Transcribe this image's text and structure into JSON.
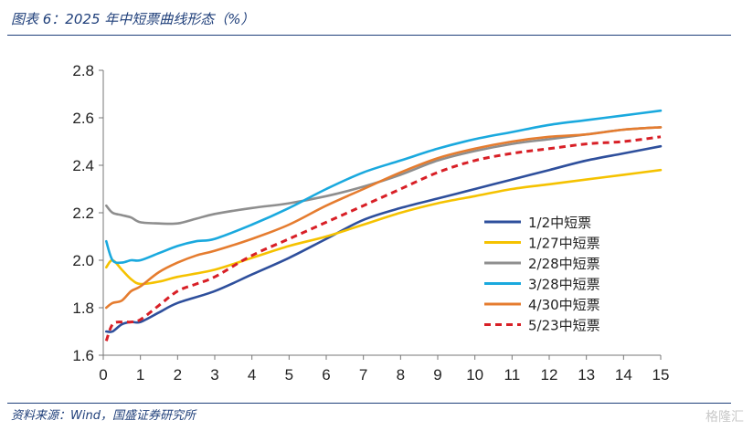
{
  "header": {
    "title": "图表 6：2025 年中短票曲线形态（%）"
  },
  "footer": {
    "source": "资料来源：Wind，国盛证券研究所"
  },
  "watermark": {
    "text": "格隆汇"
  },
  "chart_data": {
    "type": "line",
    "xlim": [
      0,
      15
    ],
    "ylim": [
      1.6,
      2.8
    ],
    "x_ticks": [
      0,
      1,
      2,
      3,
      4,
      5,
      6,
      7,
      8,
      9,
      10,
      11,
      12,
      13,
      14,
      15
    ],
    "y_ticks": [
      1.6,
      1.8,
      2.0,
      2.2,
      2.4,
      2.6,
      2.8
    ],
    "x_tick_labels": [
      "0",
      "1",
      "2",
      "3",
      "4",
      "5",
      "6",
      "7",
      "8",
      "9",
      "10",
      "11",
      "12",
      "13",
      "14",
      "15"
    ],
    "y_tick_labels": [
      "1.6",
      "1.8",
      "2.0",
      "2.2",
      "2.4",
      "2.6",
      "2.8"
    ],
    "legend_position": "right",
    "grid": false,
    "series": [
      {
        "name": "1/2中短票",
        "color": "#2e4f9c",
        "dashed": false,
        "x": [
          0.08,
          0.25,
          0.5,
          0.75,
          1,
          1.5,
          2,
          3,
          4,
          5,
          6,
          7,
          8,
          9,
          10,
          11,
          12,
          13,
          14,
          15
        ],
        "y": [
          1.7,
          1.7,
          1.73,
          1.74,
          1.74,
          1.78,
          1.82,
          1.87,
          1.94,
          2.01,
          2.09,
          2.17,
          2.22,
          2.26,
          2.3,
          2.34,
          2.38,
          2.42,
          2.45,
          2.48
        ]
      },
      {
        "name": "1/27中短票",
        "color": "#f5c200",
        "dashed": false,
        "x": [
          0.08,
          0.25,
          0.5,
          0.75,
          1,
          1.5,
          2,
          3,
          4,
          5,
          6,
          7,
          8,
          9,
          10,
          11,
          12,
          13,
          14,
          15
        ],
        "y": [
          1.97,
          2.0,
          1.96,
          1.92,
          1.9,
          1.91,
          1.93,
          1.96,
          2.01,
          2.06,
          2.1,
          2.15,
          2.2,
          2.24,
          2.27,
          2.3,
          2.32,
          2.34,
          2.36,
          2.38
        ]
      },
      {
        "name": "2/28中短票",
        "color": "#8e8e8e",
        "dashed": false,
        "x": [
          0.08,
          0.25,
          0.5,
          0.75,
          1,
          1.5,
          2,
          2.5,
          3,
          4,
          5,
          6,
          7,
          8,
          9,
          10,
          11,
          12,
          13,
          14,
          15
        ],
        "y": [
          2.23,
          2.2,
          2.19,
          2.18,
          2.16,
          2.155,
          2.155,
          2.175,
          2.195,
          2.22,
          2.24,
          2.27,
          2.31,
          2.36,
          2.42,
          2.46,
          2.49,
          2.51,
          2.53,
          2.55,
          2.56
        ]
      },
      {
        "name": "3/28中短票",
        "color": "#1aa9de",
        "dashed": false,
        "x": [
          0.08,
          0.25,
          0.5,
          0.75,
          1,
          1.5,
          2,
          2.5,
          3,
          4,
          5,
          6,
          7,
          8,
          9,
          10,
          11,
          12,
          13,
          14,
          15
        ],
        "y": [
          2.08,
          2.0,
          1.99,
          2.0,
          2.0,
          2.03,
          2.06,
          2.08,
          2.09,
          2.15,
          2.22,
          2.3,
          2.37,
          2.42,
          2.47,
          2.51,
          2.54,
          2.57,
          2.59,
          2.61,
          2.63
        ]
      },
      {
        "name": "4/30中短票",
        "color": "#e57c2f",
        "dashed": false,
        "x": [
          0.08,
          0.25,
          0.5,
          0.75,
          1,
          1.5,
          2,
          2.5,
          3,
          4,
          5,
          6,
          7,
          8,
          9,
          10,
          11,
          12,
          13,
          14,
          15
        ],
        "y": [
          1.8,
          1.82,
          1.83,
          1.87,
          1.89,
          1.95,
          1.99,
          2.02,
          2.04,
          2.09,
          2.15,
          2.23,
          2.3,
          2.37,
          2.43,
          2.47,
          2.5,
          2.52,
          2.53,
          2.55,
          2.56
        ]
      },
      {
        "name": "5/23中短票",
        "color": "#d81f26",
        "dashed": true,
        "x": [
          0.08,
          0.25,
          0.5,
          0.75,
          1,
          1.5,
          2,
          2.5,
          3,
          4,
          5,
          6,
          7,
          8,
          9,
          10,
          11,
          12,
          13,
          14,
          15
        ],
        "y": [
          1.66,
          1.73,
          1.74,
          1.74,
          1.75,
          1.81,
          1.87,
          1.9,
          1.93,
          2.02,
          2.09,
          2.16,
          2.23,
          2.3,
          2.37,
          2.42,
          2.45,
          2.47,
          2.49,
          2.5,
          2.52
        ]
      }
    ]
  }
}
